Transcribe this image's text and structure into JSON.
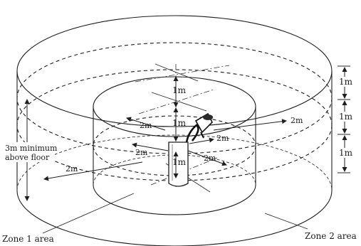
{
  "labels": {
    "one_m_top": "1m",
    "one_m_mid": "1m",
    "one_m_low": "1m",
    "one_m_right_1": "1m",
    "one_m_right_2": "1m",
    "one_m_right_3": "1m",
    "two_m_upper_left": "2m",
    "two_m_upper_right": "2m",
    "two_m_pump_right": "2m",
    "two_m_inner_left": "2m",
    "two_m_inner_right": "2m",
    "two_m_outer_left": "2m",
    "min_line1": "3m minimum",
    "min_line2": "above floor",
    "zone1": "Zone 1 area",
    "zone2": "Zone 2 area"
  }
}
